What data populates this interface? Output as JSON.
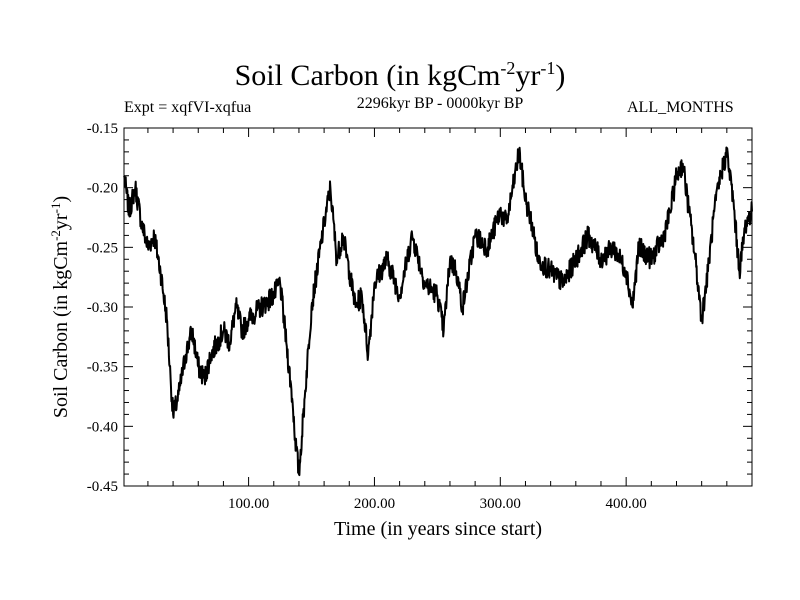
{
  "header": {
    "title_main": "Soil Carbon (in kgCm",
    "title_exp1": "-2",
    "title_mid": "yr",
    "title_exp2": "-1",
    "title_end": ")",
    "expt": "Expt = xqfVI-xqfua",
    "period": "2296kyr BP - 0000kyr BP",
    "months": "ALL_MONTHS"
  },
  "chart_data": {
    "type": "line",
    "title": "Soil Carbon (in kgCm-2yr-1)",
    "xlabel": "Time (in years since start)",
    "ylabel_main": "Soil Carbon (in kgCm",
    "ylabel_exp1": "-2",
    "ylabel_mid": "yr",
    "ylabel_exp2": "-1",
    "ylabel_end": ")",
    "xlim": [
      1,
      500
    ],
    "ylim": [
      -0.45,
      -0.15
    ],
    "xticks": [
      100,
      200,
      300,
      400
    ],
    "xtick_labels": [
      "100.00",
      "200.00",
      "300.00",
      "400.00"
    ],
    "yticks": [
      -0.45,
      -0.4,
      -0.35,
      -0.3,
      -0.25,
      -0.2,
      -0.15
    ],
    "ytick_labels": [
      "-0.45",
      "-0.40",
      "-0.35",
      "-0.30",
      "-0.25",
      "-0.20",
      "-0.15"
    ],
    "series": [
      {
        "name": "Soil Carbon",
        "color": "#000000",
        "x": [
          1,
          5,
          10,
          15,
          20,
          25,
          30,
          35,
          38,
          40,
          43,
          45,
          50,
          55,
          60,
          65,
          70,
          75,
          80,
          85,
          90,
          95,
          100,
          110,
          120,
          125,
          130,
          135,
          137,
          140,
          145,
          150,
          160,
          165,
          170,
          175,
          180,
          185,
          190,
          195,
          200,
          205,
          210,
          220,
          230,
          235,
          240,
          250,
          255,
          260,
          265,
          270,
          280,
          290,
          300,
          305,
          310,
          315,
          320,
          325,
          330,
          340,
          350,
          360,
          370,
          380,
          390,
          400,
          405,
          410,
          420,
          430,
          435,
          440,
          445,
          450,
          455,
          460,
          465,
          470,
          475,
          480,
          485,
          490,
          495,
          500
        ],
        "values": [
          -0.19,
          -0.22,
          -0.2,
          -0.23,
          -0.25,
          -0.24,
          -0.27,
          -0.31,
          -0.36,
          -0.39,
          -0.38,
          -0.37,
          -0.34,
          -0.32,
          -0.35,
          -0.36,
          -0.34,
          -0.33,
          -0.32,
          -0.33,
          -0.3,
          -0.32,
          -0.31,
          -0.3,
          -0.29,
          -0.28,
          -0.33,
          -0.38,
          -0.41,
          -0.44,
          -0.37,
          -0.3,
          -0.23,
          -0.2,
          -0.26,
          -0.24,
          -0.27,
          -0.3,
          -0.29,
          -0.34,
          -0.28,
          -0.27,
          -0.26,
          -0.29,
          -0.24,
          -0.26,
          -0.28,
          -0.29,
          -0.32,
          -0.26,
          -0.27,
          -0.3,
          -0.24,
          -0.25,
          -0.22,
          -0.23,
          -0.2,
          -0.17,
          -0.21,
          -0.23,
          -0.26,
          -0.27,
          -0.28,
          -0.26,
          -0.24,
          -0.26,
          -0.25,
          -0.27,
          -0.3,
          -0.25,
          -0.26,
          -0.24,
          -0.22,
          -0.19,
          -0.18,
          -0.22,
          -0.26,
          -0.31,
          -0.27,
          -0.22,
          -0.19,
          -0.17,
          -0.21,
          -0.27,
          -0.23,
          -0.22
        ]
      }
    ]
  }
}
